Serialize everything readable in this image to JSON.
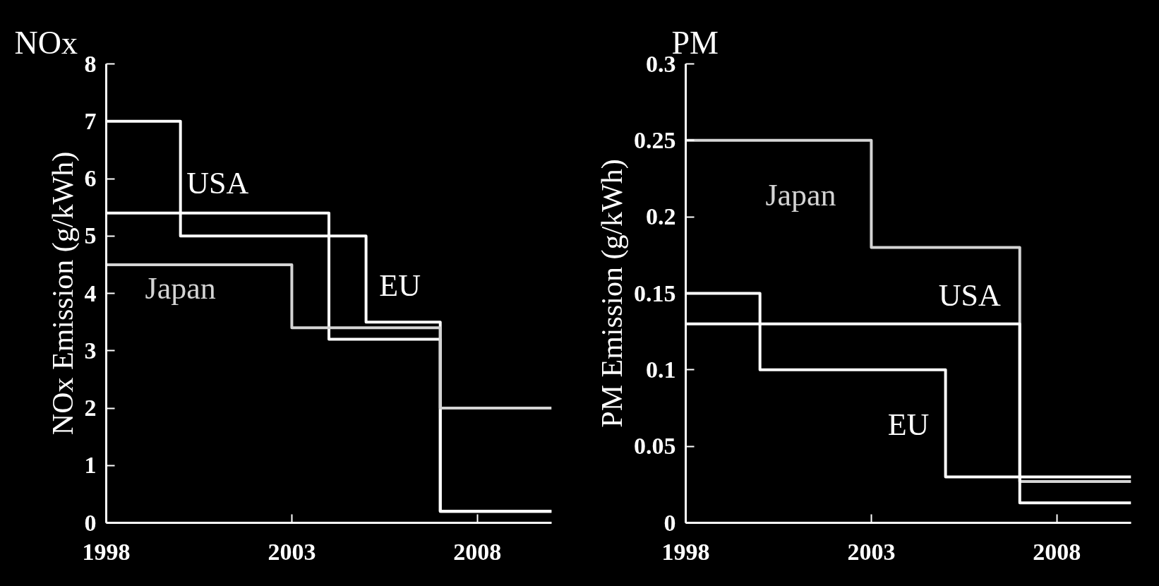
{
  "chart_data": [
    {
      "type": "step",
      "title": "NOx",
      "ylabel": "NOx Emission (g/kWh)",
      "xlim": [
        1998,
        2010
      ],
      "xticks": [
        1998,
        2003,
        2008
      ],
      "ylim": [
        0,
        8
      ],
      "yticks": [
        0,
        1,
        2,
        3,
        4,
        5,
        6,
        7,
        8
      ],
      "series": [
        {
          "name": "EU",
          "color": "#ffffff",
          "x": [
            1998,
            2000,
            2005,
            2007,
            2010
          ],
          "values": [
            7,
            5,
            3.5,
            0.2,
            0.2
          ]
        },
        {
          "name": "USA",
          "color": "#ffffff",
          "x": [
            1998,
            2004,
            2007,
            2010
          ],
          "values": [
            5.4,
            3.2,
            0.2,
            0.2
          ]
        },
        {
          "name": "Japan",
          "color": "#d4d4d4",
          "x": [
            1998,
            2003,
            2007,
            2010
          ],
          "values": [
            4.5,
            3.4,
            2.0,
            2.0
          ]
        }
      ]
    },
    {
      "type": "step",
      "title": "PM",
      "ylabel": "PM Emission (g/kWh)",
      "xlim": [
        1998,
        2010
      ],
      "xticks": [
        1998,
        2003,
        2008
      ],
      "ylim": [
        0,
        0.3
      ],
      "yticks": [
        0,
        0.05,
        0.1,
        0.15,
        0.2,
        0.25,
        0.3
      ],
      "series": [
        {
          "name": "Japan",
          "color": "#d4d4d4",
          "x": [
            1998,
            2003,
            2007,
            2010
          ],
          "values": [
            0.25,
            0.18,
            0.027,
            0.027
          ]
        },
        {
          "name": "USA",
          "color": "#ffffff",
          "x": [
            1998,
            2007,
            2010
          ],
          "values": [
            0.13,
            0.013,
            0.013
          ]
        },
        {
          "name": "EU",
          "color": "#ffffff",
          "x": [
            1998,
            2000,
            2005,
            2010
          ],
          "values": [
            0.15,
            0.1,
            0.03,
            0.03
          ]
        }
      ]
    }
  ]
}
